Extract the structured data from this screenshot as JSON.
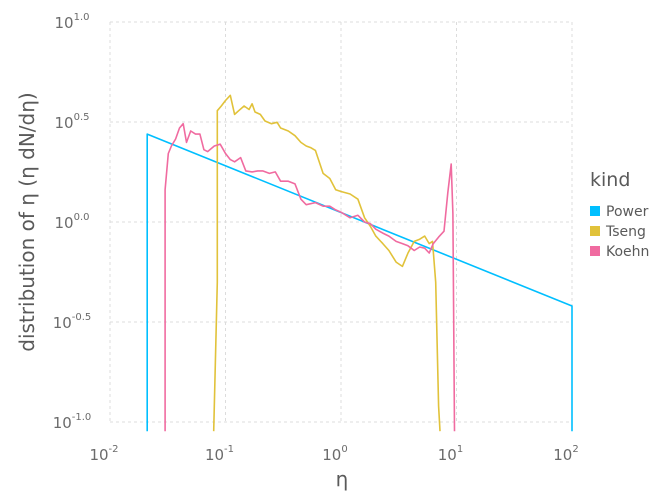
{
  "chart_data": {
    "type": "line",
    "xlabel": "η",
    "ylabel": "distribution of η (η dN/dη)",
    "xscale": "log10",
    "yscale": "log10",
    "xlim": [
      0.01,
      100
    ],
    "ylim": [
      0.1,
      10
    ],
    "grid": true,
    "x_ticks": [
      {
        "base": "10",
        "exp": "-2",
        "value": 0.01
      },
      {
        "base": "10",
        "exp": "-1",
        "value": 0.1
      },
      {
        "base": "10",
        "exp": "0",
        "value": 1
      },
      {
        "base": "10",
        "exp": "1",
        "value": 10
      },
      {
        "base": "10",
        "exp": "2",
        "value": 100
      }
    ],
    "y_ticks": [
      {
        "base": "10",
        "exp": "1.0",
        "value": 10
      },
      {
        "base": "10",
        "exp": "0.5",
        "value": 3.1623
      },
      {
        "base": "10",
        "exp": "0.0",
        "value": 1
      },
      {
        "base": "10",
        "exp": "-0.5",
        "value": 0.3162
      },
      {
        "base": "10",
        "exp": "-1.0",
        "value": 0.1
      }
    ],
    "legend": {
      "title": "kind",
      "position": "right"
    },
    "series": [
      {
        "name": "Power",
        "color": "#00bfff",
        "x": [
          0.021,
          0.021,
          0.021,
          100,
          100
        ],
        "y": [
          0.09,
          0.1,
          2.75,
          0.38,
          0.09
        ]
      },
      {
        "name": "Tseng",
        "color": "#e1c23a",
        "x": [
          0.079,
          0.085,
          0.085,
          0.092,
          0.1,
          0.11,
          0.12,
          0.13,
          0.145,
          0.16,
          0.17,
          0.18,
          0.2,
          0.22,
          0.25,
          0.28,
          0.3,
          0.35,
          0.4,
          0.45,
          0.5,
          0.55,
          0.6,
          0.7,
          0.8,
          0.9,
          1.0,
          1.2,
          1.4,
          1.6,
          1.8,
          2.0,
          2.3,
          2.6,
          3.0,
          3.4,
          3.8,
          4.3,
          4.8,
          5.3,
          5.8,
          6.2,
          6.6,
          7.0,
          7.2
        ],
        "y": [
          0.09,
          0.5,
          3.6,
          3.8,
          4.05,
          4.3,
          3.45,
          3.6,
          3.8,
          3.65,
          3.9,
          3.55,
          3.45,
          3.2,
          3.1,
          3.15,
          2.95,
          2.85,
          2.7,
          2.5,
          2.4,
          2.35,
          2.28,
          1.75,
          1.65,
          1.45,
          1.42,
          1.38,
          1.3,
          1.05,
          0.95,
          0.85,
          0.78,
          0.72,
          0.63,
          0.6,
          0.7,
          0.8,
          0.82,
          0.85,
          0.78,
          0.8,
          0.5,
          0.12,
          0.09
        ]
      },
      {
        "name": "Koehn",
        "color": "#f06ba0",
        "x": [
          0.03,
          0.03,
          0.032,
          0.034,
          0.037,
          0.04,
          0.043,
          0.046,
          0.05,
          0.055,
          0.06,
          0.065,
          0.07,
          0.08,
          0.09,
          0.1,
          0.11,
          0.12,
          0.135,
          0.15,
          0.17,
          0.19,
          0.21,
          0.24,
          0.27,
          0.3,
          0.35,
          0.4,
          0.45,
          0.5,
          0.6,
          0.7,
          0.8,
          0.9,
          1.0,
          1.2,
          1.4,
          1.6,
          1.8,
          2.0,
          2.3,
          2.6,
          3.0,
          3.4,
          3.8,
          4.3,
          4.8,
          5.3,
          5.8,
          6.3,
          7.0,
          7.8,
          8.4,
          9.0,
          9.3,
          9.6
        ],
        "y": [
          0.09,
          1.45,
          2.2,
          2.4,
          2.6,
          2.95,
          3.1,
          2.5,
          2.85,
          2.75,
          2.75,
          2.3,
          2.25,
          2.4,
          2.45,
          2.2,
          2.05,
          2.0,
          2.1,
          1.8,
          1.78,
          1.8,
          1.8,
          1.75,
          1.78,
          1.6,
          1.6,
          1.55,
          1.3,
          1.22,
          1.25,
          1.2,
          1.2,
          1.15,
          1.12,
          1.05,
          1.08,
          1.0,
          0.98,
          0.92,
          0.88,
          0.85,
          0.8,
          0.78,
          0.76,
          0.72,
          0.75,
          0.74,
          0.7,
          0.78,
          0.84,
          0.9,
          1.4,
          1.95,
          1.1,
          0.09
        ]
      }
    ]
  }
}
